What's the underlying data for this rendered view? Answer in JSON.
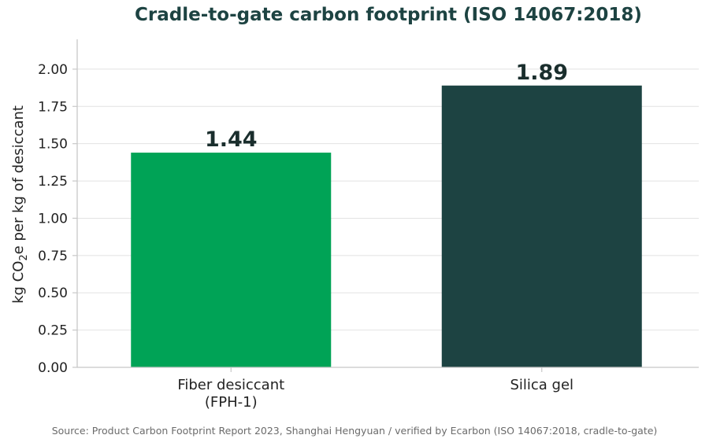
{
  "source": "Source: Product Carbon Footprint Report 2023, Shanghai Hengyuan / verified by Ecarbon (ISO 14067:2018, cradle-to-gate)",
  "chart_data": {
    "type": "bar",
    "title": "Cradle-to-gate carbon footprint (ISO 14067:2018)",
    "xlabel": "",
    "ylabel": {
      "before": "kg CO",
      "subscript": "2",
      "after": "e per kg of desiccant"
    },
    "categories": [
      [
        "Fiber desiccant",
        "(FPH-1)"
      ],
      [
        "Silica gel"
      ]
    ],
    "values": [
      1.44,
      1.89
    ],
    "value_labels": [
      "1.44",
      "1.89"
    ],
    "colors": [
      "#00a356",
      "#1d4342"
    ],
    "ylim": [
      0,
      2.2
    ],
    "yticks": [
      0,
      0.25,
      0.5,
      0.75,
      1.0,
      1.25,
      1.5,
      1.75,
      2.0
    ],
    "ytick_labels": [
      "0.00",
      "0.25",
      "0.50",
      "0.75",
      "1.00",
      "1.25",
      "1.50",
      "1.75",
      "2.00"
    ],
    "grid": "horizontal",
    "legend": "none"
  }
}
